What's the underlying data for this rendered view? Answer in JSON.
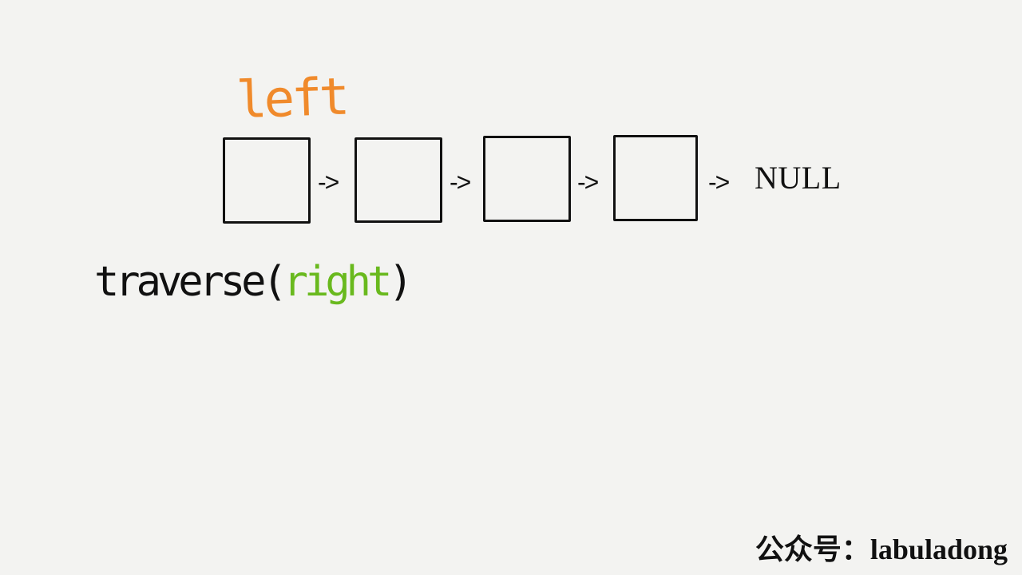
{
  "diagram": {
    "left_label": "left",
    "traverse_call": {
      "function": "traverse",
      "open_paren": "(",
      "argument": "right",
      "close_paren": ")"
    },
    "nodes": [
      {
        "arrow": "->"
      },
      {
        "arrow": "->"
      },
      {
        "arrow": "->"
      },
      {
        "arrow": "->"
      }
    ],
    "terminal_label": "NULL"
  },
  "watermark": {
    "text": "公众号：labuladong"
  },
  "colors": {
    "background": "#f3f3f1",
    "left_label": "#f08a2b",
    "argument": "#69b91e",
    "ink": "#111111"
  }
}
